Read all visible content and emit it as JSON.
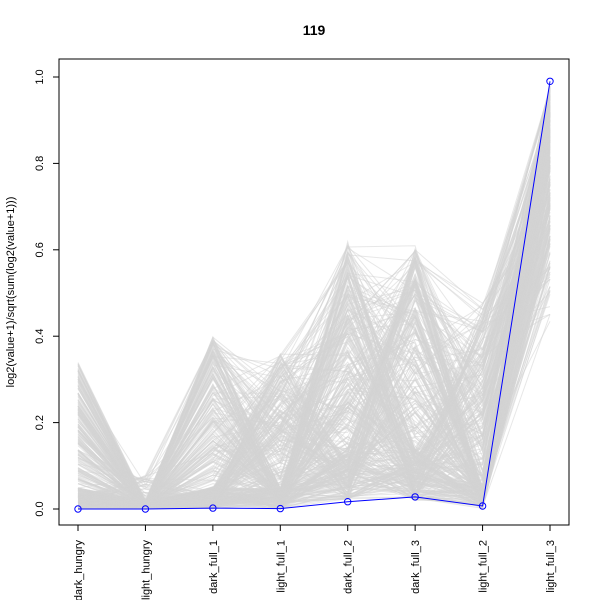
{
  "chart_data": {
    "type": "line",
    "title": "119",
    "xlabel": "",
    "ylabel": "log2(value+1)/sqrt(sum(log2(value+1)))",
    "categories": [
      "dark_hungry",
      "light_hungry",
      "dark_full_1",
      "light_full_1",
      "dark_full_2",
      "dark_full_3",
      "light_full_2",
      "light_full_3"
    ],
    "ylim": [
      0,
      1
    ],
    "yticks": [
      "0.0",
      "0.2",
      "0.4",
      "0.6",
      "0.8",
      "1.0"
    ],
    "grid": false,
    "legend": "none",
    "background_lines_color": "#d3d3d3",
    "series": [
      {
        "values": [
          0.0,
          0.0,
          0.002,
          0.001,
          0.017,
          0.028,
          0.007,
          0.99
        ],
        "color": "#0000ff",
        "marker": "open-circle"
      }
    ]
  }
}
